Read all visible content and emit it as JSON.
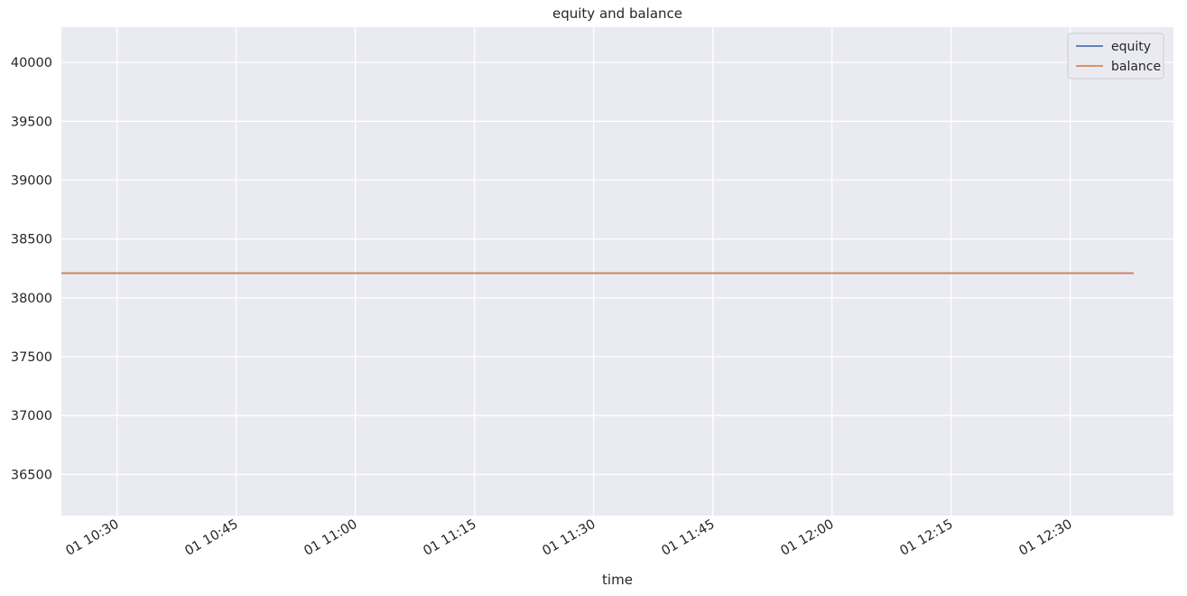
{
  "chart_data": {
    "type": "line",
    "title": "equity and balance",
    "xlabel": "time",
    "ylabel": "",
    "x_tick_labels": [
      "01 10:30",
      "01 10:45",
      "01 11:00",
      "01 11:15",
      "01 11:30",
      "01 11:45",
      "01 12:00",
      "01 12:15",
      "01 12:30"
    ],
    "x_tick_values": [
      "10:30",
      "10:45",
      "11:00",
      "11:15",
      "11:30",
      "11:45",
      "12:00",
      "12:15",
      "12:30"
    ],
    "xlim": [
      "10:23",
      "12:43"
    ],
    "y_ticks": [
      36500,
      37000,
      37500,
      38000,
      38500,
      39000,
      39500,
      40000
    ],
    "ylim": [
      36150,
      40300
    ],
    "grid": true,
    "legend_position": "top-right",
    "series": [
      {
        "name": "equity",
        "color": "#4c72b0",
        "x": [
          "10:23",
          "12:38"
        ],
        "y": [
          38210,
          38210
        ]
      },
      {
        "name": "balance",
        "color": "#dd8452",
        "x": [
          "10:23",
          "12:38"
        ],
        "y": [
          38210,
          38210
        ]
      }
    ]
  },
  "colors": {
    "plot_background": "#eaeaf2",
    "grid": "#ffffff"
  }
}
